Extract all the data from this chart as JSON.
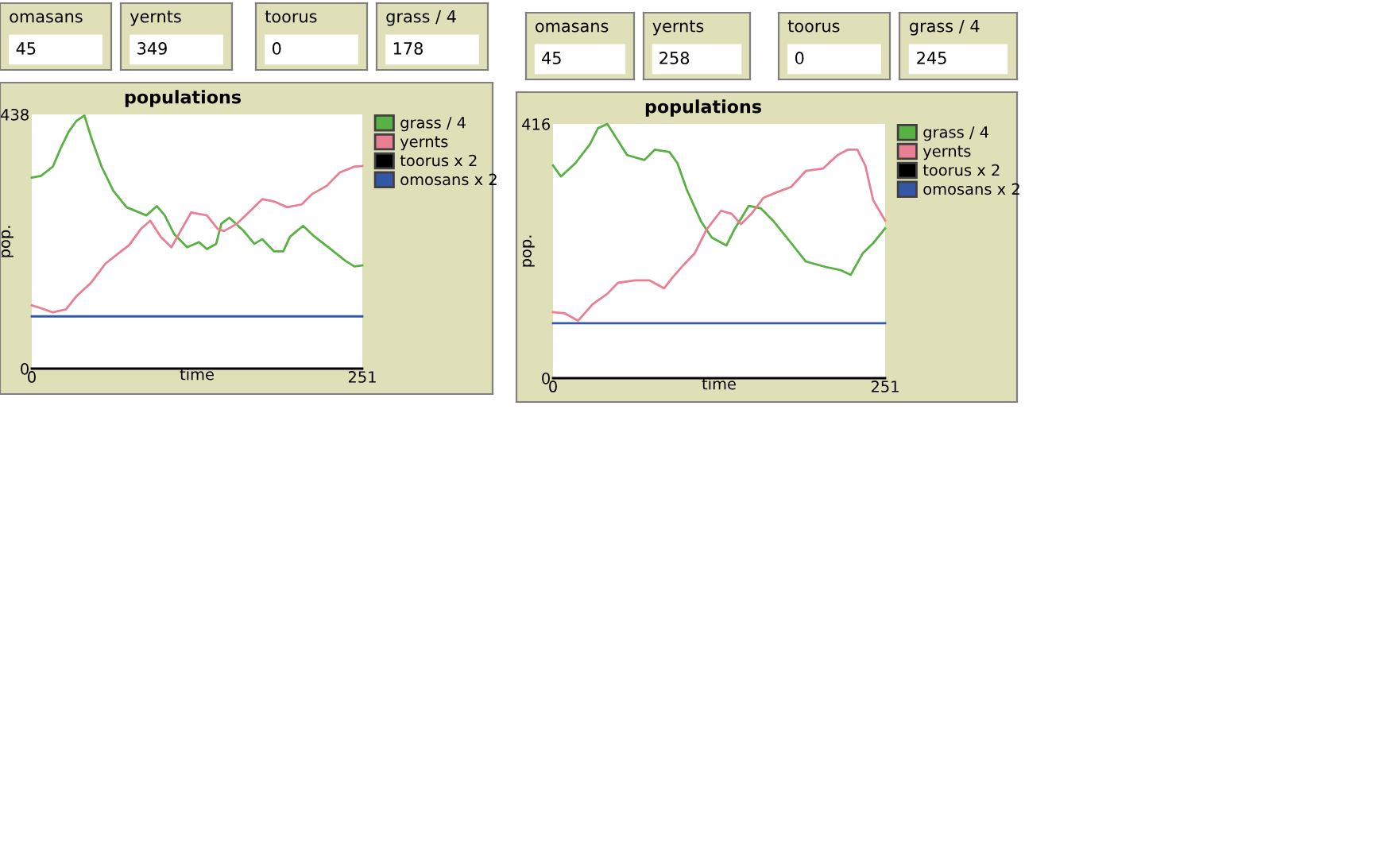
{
  "chart_data": [
    {
      "type": "line",
      "title": "populations",
      "xlabel": "time",
      "ylabel": "pop.",
      "xlim": [
        0,
        251
      ],
      "ylim": [
        0,
        438
      ],
      "xticks": [
        0,
        251
      ],
      "yticks": [
        0,
        438
      ],
      "grid": false,
      "legend": "right",
      "line_style": "solid",
      "marker": "none",
      "annotations": [
        "omasans",
        "45",
        "yernts",
        "349",
        "toorus",
        "0",
        "grass / 4",
        "178"
      ],
      "series": [
        {
          "name": "grass / 4",
          "color": "#59b143",
          "x": [
            0,
            7,
            16,
            22,
            28,
            34,
            40,
            45,
            53,
            62,
            72,
            87,
            95,
            101,
            108,
            118,
            127,
            133,
            140,
            144,
            150,
            161,
            169,
            175,
            184,
            191,
            196,
            206,
            215,
            228,
            238,
            245,
            251
          ],
          "values": [
            329,
            332,
            348,
            380,
            408,
            427,
            436,
            399,
            348,
            306,
            278,
            264,
            280,
            264,
            232,
            209,
            218,
            206,
            215,
            250,
            260,
            237,
            215,
            223,
            202,
            202,
            227,
            246,
            227,
            204,
            186,
            176,
            178
          ]
        },
        {
          "name": "yernts",
          "color": "#e87f95",
          "x": [
            0,
            7,
            16,
            26,
            34,
            45,
            56,
            66,
            74,
            83,
            90,
            98,
            106,
            114,
            121,
            133,
            141,
            146,
            156,
            167,
            175,
            184,
            194,
            205,
            213,
            224,
            234,
            245,
            251
          ],
          "values": [
            109,
            104,
            97,
            102,
            125,
            148,
            181,
            199,
            213,
            241,
            255,
            227,
            209,
            241,
            269,
            264,
            241,
            237,
            250,
            274,
            292,
            288,
            278,
            283,
            301,
            315,
            338,
            348,
            349
          ]
        },
        {
          "name": "toorus x 2",
          "color": "#000000",
          "x": [
            0,
            251
          ],
          "values": [
            0,
            0
          ]
        },
        {
          "name": "omosans x 2",
          "color": "#3458a8",
          "x": [
            0,
            251
          ],
          "values": [
            90,
            90
          ]
        }
      ]
    },
    {
      "type": "line",
      "title": "populations",
      "xlabel": "time",
      "ylabel": "pop.",
      "xlim": [
        0,
        251
      ],
      "ylim": [
        0,
        416
      ],
      "xticks": [
        0,
        251
      ],
      "yticks": [
        0,
        416
      ],
      "grid": false,
      "legend": "right",
      "line_style": "solid",
      "marker": "none",
      "annotations": [
        "omasans",
        "45",
        "yernts",
        "258",
        "toorus",
        "0",
        "grass / 4",
        "245"
      ],
      "series": [
        {
          "name": "grass / 4",
          "color": "#59b143",
          "x": [
            0,
            6,
            17,
            28,
            34,
            41,
            47,
            56,
            69,
            77,
            88,
            94,
            101,
            112,
            120,
            131,
            137,
            148,
            157,
            167,
            180,
            191,
            206,
            217,
            225,
            234,
            242,
            251
          ],
          "values": [
            348,
            330,
            352,
            383,
            409,
            416,
            396,
            365,
            357,
            374,
            370,
            352,
            309,
            256,
            230,
            217,
            243,
            282,
            278,
            256,
            221,
            191,
            182,
            177,
            169,
            204,
            221,
            245
          ]
        },
        {
          "name": "yernts",
          "color": "#e87f95",
          "x": [
            0,
            9,
            19,
            30,
            41,
            49,
            62,
            73,
            84,
            90,
            99,
            107,
            116,
            127,
            135,
            142,
            150,
            159,
            169,
            180,
            191,
            204,
            215,
            223,
            230,
            236,
            242,
            251
          ],
          "values": [
            108,
            106,
            94,
            121,
            138,
            156,
            160,
            160,
            147,
            164,
            186,
            204,
            243,
            274,
            269,
            252,
            269,
            295,
            304,
            313,
            339,
            343,
            365,
            374,
            374,
            348,
            291,
            258
          ]
        },
        {
          "name": "toorus x 2",
          "color": "#000000",
          "x": [
            0,
            251
          ],
          "values": [
            0,
            0
          ]
        },
        {
          "name": "omosans x 2",
          "color": "#3458a8",
          "x": [
            0,
            251
          ],
          "values": [
            90,
            90
          ]
        }
      ]
    }
  ]
}
